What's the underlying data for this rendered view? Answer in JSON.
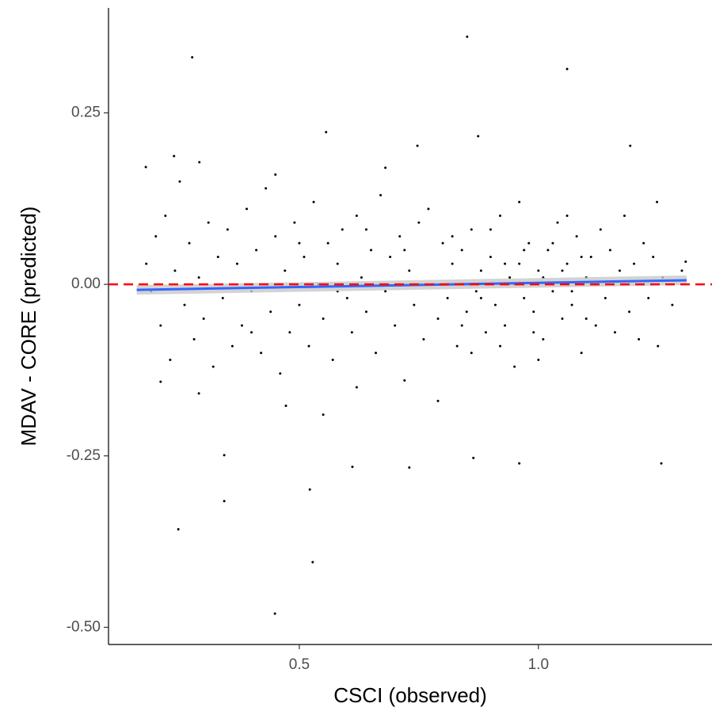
{
  "chart_data": {
    "type": "scatter",
    "x_label": "CSCI (observed)",
    "y_label": "MDAV - CORE (predicted)",
    "color": "#000000",
    "x": [
      0.276,
      0.851,
      1.06,
      0.556,
      0.247,
      0.343,
      0.343,
      0.528,
      0.449,
      0.522,
      0.73,
      1.257,
      0.179,
      1.192,
      0.29,
      0.21,
      0.291,
      0.874,
      0.747,
      1.248,
      0.238,
      0.96,
      0.611,
      0.864,
      0.472,
      1.308,
      0.18,
      0.19,
      0.2,
      0.21,
      0.22,
      0.23,
      0.24,
      0.25,
      0.26,
      0.27,
      0.28,
      0.29,
      0.3,
      0.31,
      0.32,
      0.33,
      0.34,
      0.35,
      0.36,
      0.37,
      0.38,
      0.39,
      0.4,
      0.41,
      0.42,
      0.43,
      0.44,
      0.45,
      0.46,
      0.47,
      0.48,
      0.49,
      0.5,
      0.51,
      0.52,
      0.53,
      0.54,
      0.55,
      0.56,
      0.57,
      0.58,
      0.59,
      0.6,
      0.61,
      0.62,
      0.63,
      0.64,
      0.65,
      0.66,
      0.67,
      0.68,
      0.69,
      0.7,
      0.71,
      0.72,
      0.73,
      0.74,
      0.75,
      0.76,
      0.77,
      0.78,
      0.79,
      0.8,
      0.81,
      0.82,
      0.83,
      0.84,
      0.85,
      0.86,
      0.87,
      0.88,
      0.89,
      0.9,
      0.91,
      0.92,
      0.93,
      0.94,
      0.95,
      0.96,
      0.97,
      0.98,
      0.99,
      1.0,
      1.01,
      1.02,
      1.03,
      1.04,
      1.05,
      1.06,
      1.07,
      1.08,
      1.09,
      1.1,
      1.11,
      1.12,
      1.13,
      1.14,
      1.15,
      1.16,
      1.17,
      1.18,
      1.19,
      1.2,
      1.21,
      1.22,
      1.23,
      1.24,
      1.25,
      1.26,
      1.28,
      1.3,
      0.82,
      0.84,
      0.88,
      0.9,
      0.93,
      0.95,
      0.97,
      0.99,
      1.01,
      1.03,
      1.05,
      1.07,
      1.09,
      1.1,
      1.12,
      0.86,
      0.92,
      0.96,
      1.0,
      1.06,
      0.62,
      0.68,
      0.45,
      0.55,
      0.79,
      0.64,
      0.72,
      0.58,
      0.5,
      0.4
    ],
    "values": [
      0.331,
      0.361,
      0.314,
      0.222,
      -0.357,
      -0.316,
      -0.249,
      -0.405,
      -0.48,
      -0.299,
      -0.267,
      -0.261,
      0.171,
      0.202,
      -0.159,
      -0.142,
      0.178,
      0.216,
      0.202,
      0.12,
      0.187,
      -0.261,
      -0.266,
      -0.253,
      -0.177,
      0.033,
      0.03,
      -0.01,
      0.07,
      -0.06,
      0.1,
      -0.11,
      0.02,
      0.15,
      -0.03,
      0.06,
      -0.08,
      0.01,
      -0.05,
      0.09,
      -0.12,
      0.04,
      -0.02,
      0.08,
      -0.09,
      0.03,
      -0.06,
      0.11,
      -0.01,
      0.05,
      -0.1,
      0.14,
      -0.04,
      0.07,
      -0.13,
      0.02,
      -0.07,
      0.09,
      -0.03,
      0.04,
      -0.09,
      0.12,
      0.0,
      -0.05,
      0.06,
      -0.11,
      0.03,
      0.08,
      -0.02,
      -0.07,
      0.1,
      0.01,
      -0.04,
      0.05,
      -0.1,
      0.13,
      -0.01,
      0.04,
      -0.06,
      0.07,
      -0.14,
      0.02,
      -0.03,
      0.09,
      -0.08,
      0.11,
      0.0,
      -0.05,
      0.06,
      -0.02,
      0.03,
      -0.09,
      0.05,
      -0.04,
      0.08,
      -0.01,
      0.02,
      -0.07,
      0.04,
      -0.03,
      0.1,
      -0.06,
      0.01,
      -0.12,
      0.03,
      -0.02,
      0.06,
      -0.04,
      0.02,
      -0.08,
      0.05,
      -0.01,
      0.09,
      -0.05,
      0.03,
      -0.03,
      0.07,
      -0.1,
      0.01,
      0.04,
      -0.06,
      0.08,
      -0.02,
      0.05,
      -0.07,
      0.02,
      0.1,
      -0.04,
      0.03,
      -0.08,
      0.06,
      -0.02,
      0.04,
      -0.09,
      0.01,
      -0.03,
      0.02,
      0.07,
      -0.06,
      -0.02,
      0.08,
      0.03,
      0.0,
      0.05,
      -0.07,
      0.01,
      0.06,
      0.02,
      -0.01,
      0.04,
      -0.05,
      0.0,
      -0.1,
      -0.09,
      0.12,
      -0.11,
      0.1,
      -0.15,
      0.17,
      0.16,
      -0.19,
      -0.17,
      0.08,
      0.05,
      -0.01,
      0.06,
      -0.07
    ],
    "reference_line": {
      "y": 0,
      "color": "#ff0000"
    },
    "trend_line": {
      "x": [
        0.16,
        1.31
      ],
      "values": [
        -0.008,
        0.006
      ],
      "lower": [
        -0.015,
        -0.001
      ],
      "upper": [
        -0.001,
        0.013
      ],
      "color": "#3366ff",
      "band_color": "#c8c8c8"
    },
    "xlim": [
      0.101,
      1.363
    ],
    "ylim": [
      -0.525,
      0.403
    ],
    "xticks": [
      0.5,
      {
        "value": 1,
        "label": "1.0"
      }
    ],
    "yticks": [
      {
        "value": -0.5,
        "label": "-0.50"
      },
      -0.25,
      {
        "value": 0,
        "label": "0.00"
      },
      0.25
    ]
  }
}
